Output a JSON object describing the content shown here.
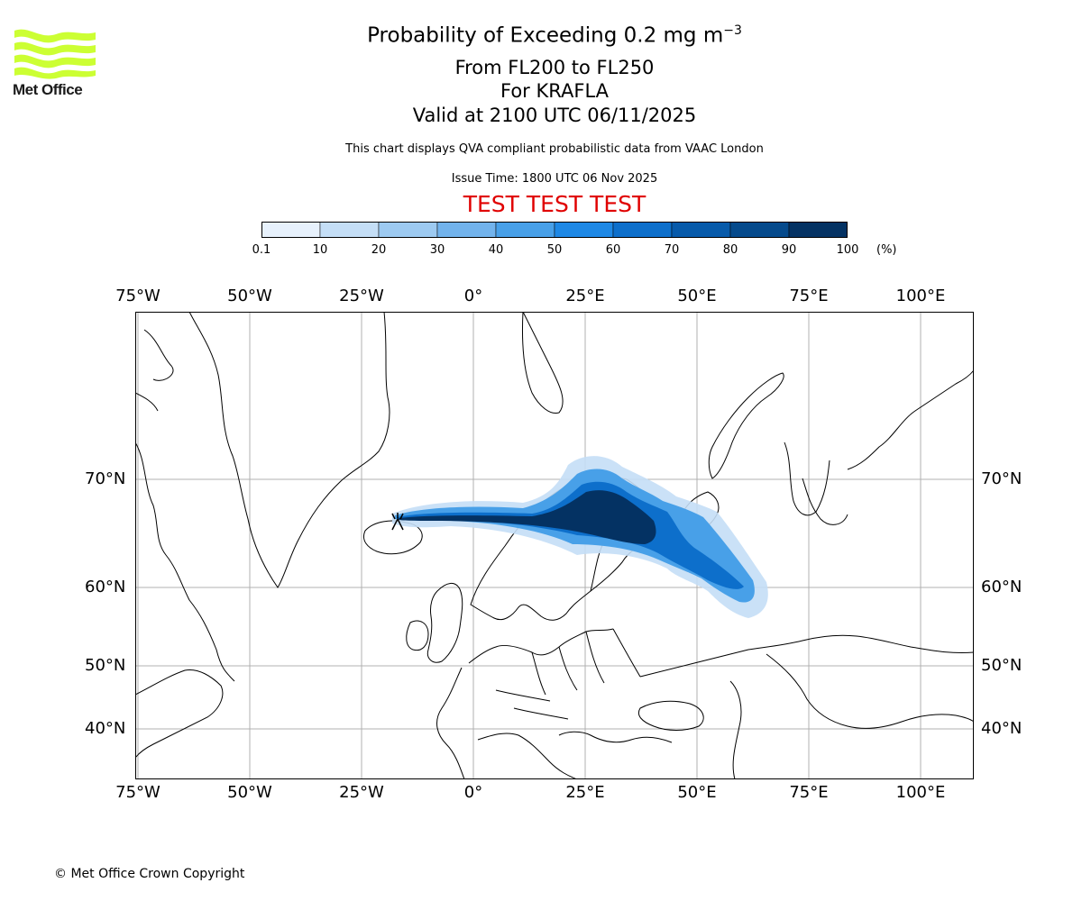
{
  "logo": {
    "text": "Met Office",
    "color": "#ccff33"
  },
  "title": {
    "main": "Probability of Exceeding 0.2 mg m",
    "main_sup": "−3",
    "levels": "From FL200 to FL250",
    "volcano": "For KRAFLA",
    "valid": "Valid at 2100 UTC 06/11/2025"
  },
  "subtitle": "This chart displays QVA compliant probabilistic data from VAAC London",
  "issue_time": "Issue Time: 1800 UTC 06 Nov 2025",
  "test_banner": "TEST TEST TEST",
  "colorbar": {
    "ticks": [
      "0.1",
      "10",
      "20",
      "30",
      "40",
      "50",
      "60",
      "70",
      "80",
      "90",
      "100"
    ],
    "unit": "(%)",
    "colors": [
      "#e7f1fc",
      "#c4def6",
      "#9dcaf1",
      "#72b3ec",
      "#48a0e8",
      "#1e88e5",
      "#0d6fcb",
      "#075aaa",
      "#054a8c",
      "#043263"
    ]
  },
  "map": {
    "longitude_labels": [
      "75°W",
      "50°W",
      "25°W",
      "0°",
      "25°E",
      "50°E",
      "75°E",
      "100°E"
    ],
    "latitude_labels": [
      "70°N",
      "60°N",
      "50°N",
      "40°N"
    ],
    "volcano_marker": "volcano-symbol"
  },
  "copyright": "© Met Office Crown Copyright"
}
